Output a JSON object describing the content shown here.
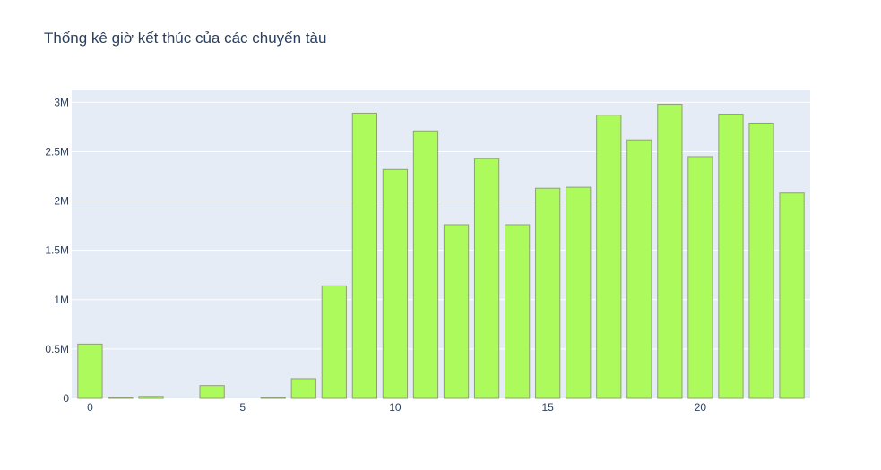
{
  "chart_data": {
    "type": "bar",
    "title": "Thống kê giờ kết thúc của các chuyến tàu",
    "xlabel": "",
    "ylabel": "",
    "x": [
      0,
      1,
      2,
      3,
      4,
      5,
      6,
      7,
      8,
      9,
      10,
      11,
      12,
      13,
      14,
      15,
      16,
      17,
      18,
      19,
      20,
      21,
      22,
      23
    ],
    "values": [
      550000,
      5000,
      20000,
      0,
      130000,
      0,
      8000,
      200000,
      1140000,
      2890000,
      2320000,
      2710000,
      1760000,
      2430000,
      1760000,
      2130000,
      2140000,
      2870000,
      2620000,
      2980000,
      2450000,
      2880000,
      2790000,
      2080000
    ],
    "xlim": [
      -0.6,
      23.6
    ],
    "ylim": [
      0,
      3130000
    ],
    "x_ticks": [
      0,
      5,
      10,
      15,
      20
    ],
    "x_tick_labels": [
      "0",
      "5",
      "10",
      "15",
      "20"
    ],
    "y_ticks": [
      0,
      500000,
      1000000,
      1500000,
      2000000,
      2500000,
      3000000
    ],
    "y_tick_labels": [
      "0",
      "0.5M",
      "1M",
      "1.5M",
      "2M",
      "2.5M",
      "3M"
    ],
    "grid": true,
    "colors": {
      "bar_fill": "#adfa5c",
      "bar_stroke": "#8fa076",
      "plot_bg": "#e5ecf6",
      "grid": "#ffffff",
      "text": "#2a3f5f"
    }
  }
}
